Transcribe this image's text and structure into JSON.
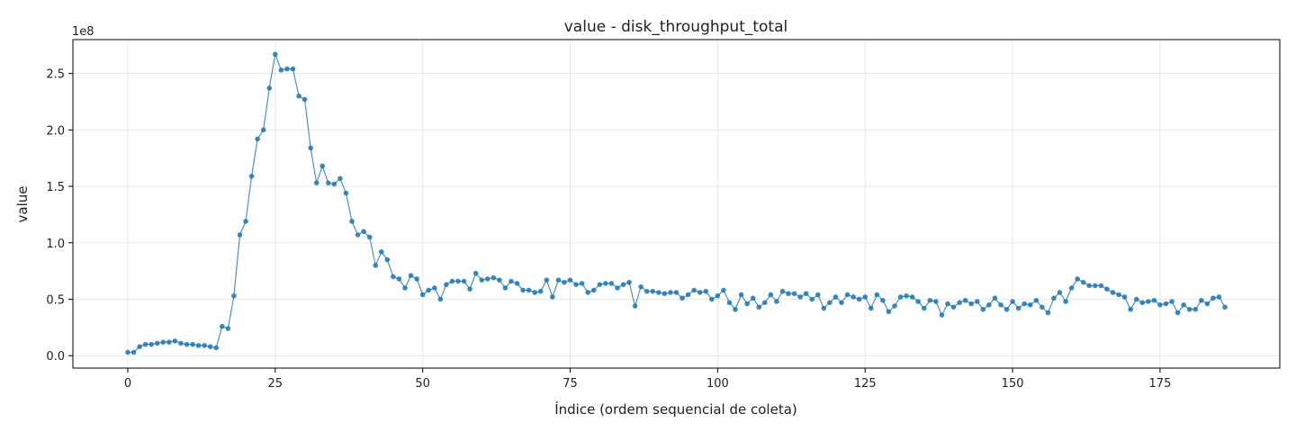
{
  "chart_data": {
    "type": "line",
    "title": "value - disk_throughput_total",
    "xlabel": "Índice (ordem sequencial de coleta)",
    "ylabel": "value",
    "y_scale_label": "1e8",
    "xlim": [
      -9.3,
      195.3
    ],
    "ylim": [
      -0.11,
      2.8
    ],
    "x_ticks": [
      0,
      25,
      50,
      75,
      100,
      125,
      150,
      175
    ],
    "x_tick_labels": [
      "0",
      "25",
      "50",
      "75",
      "100",
      "125",
      "150",
      "175"
    ],
    "y_ticks": [
      0.0,
      0.5,
      1.0,
      1.5,
      2.0,
      2.5
    ],
    "y_tick_labels": [
      "0.0",
      "0.5",
      "1.0",
      "1.5",
      "2.0",
      "2.5"
    ],
    "grid": true,
    "color": "#1f77b4",
    "markers": true,
    "series": [
      {
        "values": [
          0.03,
          0.03,
          0.08,
          0.1,
          0.1,
          0.11,
          0.12,
          0.12,
          0.13,
          0.11,
          0.1,
          0.1,
          0.09,
          0.09,
          0.08,
          0.07,
          0.26,
          0.24,
          0.53,
          1.07,
          1.19,
          1.59,
          1.92,
          2.0,
          2.37,
          2.67,
          2.53,
          2.54,
          2.54,
          2.3,
          2.27,
          1.84,
          1.53,
          1.68,
          1.53,
          1.52,
          1.57,
          1.44,
          1.19,
          1.07,
          1.1,
          1.05,
          0.8,
          0.92,
          0.85,
          0.7,
          0.68,
          0.6,
          0.71,
          0.68,
          0.54,
          0.58,
          0.6,
          0.5,
          0.63,
          0.66,
          0.66,
          0.66,
          0.59,
          0.73,
          0.67,
          0.68,
          0.69,
          0.67,
          0.6,
          0.66,
          0.64,
          0.58,
          0.58,
          0.56,
          0.57,
          0.67,
          0.52,
          0.67,
          0.65,
          0.67,
          0.63,
          0.64,
          0.56,
          0.58,
          0.63,
          0.64,
          0.64,
          0.6,
          0.63,
          0.65,
          0.44,
          0.61,
          0.57,
          0.57,
          0.56,
          0.55,
          0.56,
          0.56,
          0.51,
          0.54,
          0.58,
          0.56,
          0.57,
          0.5,
          0.53,
          0.58,
          0.47,
          0.41,
          0.54,
          0.46,
          0.51,
          0.43,
          0.47,
          0.54,
          0.48,
          0.57,
          0.55,
          0.55,
          0.52,
          0.55,
          0.5,
          0.54,
          0.42,
          0.47,
          0.52,
          0.47,
          0.54,
          0.52,
          0.5,
          0.52,
          0.42,
          0.54,
          0.49,
          0.39,
          0.44,
          0.52,
          0.53,
          0.52,
          0.48,
          0.42,
          0.49,
          0.48,
          0.36,
          0.46,
          0.43,
          0.47,
          0.49,
          0.46,
          0.48,
          0.41,
          0.45,
          0.51,
          0.45,
          0.41,
          0.48,
          0.42,
          0.46,
          0.45,
          0.49,
          0.43,
          0.38,
          0.51,
          0.56,
          0.48,
          0.6,
          0.68,
          0.65,
          0.62,
          0.62,
          0.62,
          0.59,
          0.56,
          0.54,
          0.52,
          0.41,
          0.5,
          0.47,
          0.48,
          0.49,
          0.45,
          0.46,
          0.48,
          0.38,
          0.45,
          0.41,
          0.41,
          0.49,
          0.46,
          0.51,
          0.52,
          0.43
        ]
      }
    ]
  }
}
